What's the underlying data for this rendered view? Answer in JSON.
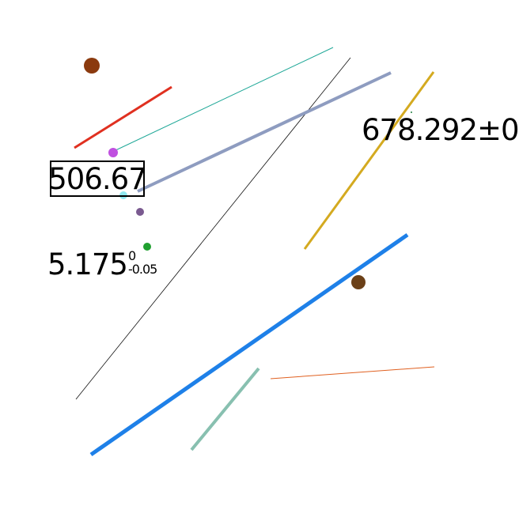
{
  "labels": {
    "boxed_value": "506.67",
    "tolerance": {
      "base": "5.175",
      "upper": "0",
      "lower": "-0.05"
    },
    "plusminus_value": "678.292±0"
  },
  "colors": {
    "red_line": "#e03020",
    "teal_thin_line": "#20a898",
    "black_thin_line": "#111111",
    "slate_line": "#8e9cc0",
    "gold_line": "#d4aa20",
    "blue_line": "#1e80e8",
    "orange_line": "#e06020",
    "sage_line": "#88c0b0",
    "brown_dot_large": "#8b3a0e",
    "magenta_dot": "#c050e0",
    "cyan_dot": "#90e8f0",
    "purple_dot": "#7a5a90",
    "green_dot": "#20a030",
    "brown_dot": "#6b4018",
    "tiny_green_dot": "#208040"
  }
}
